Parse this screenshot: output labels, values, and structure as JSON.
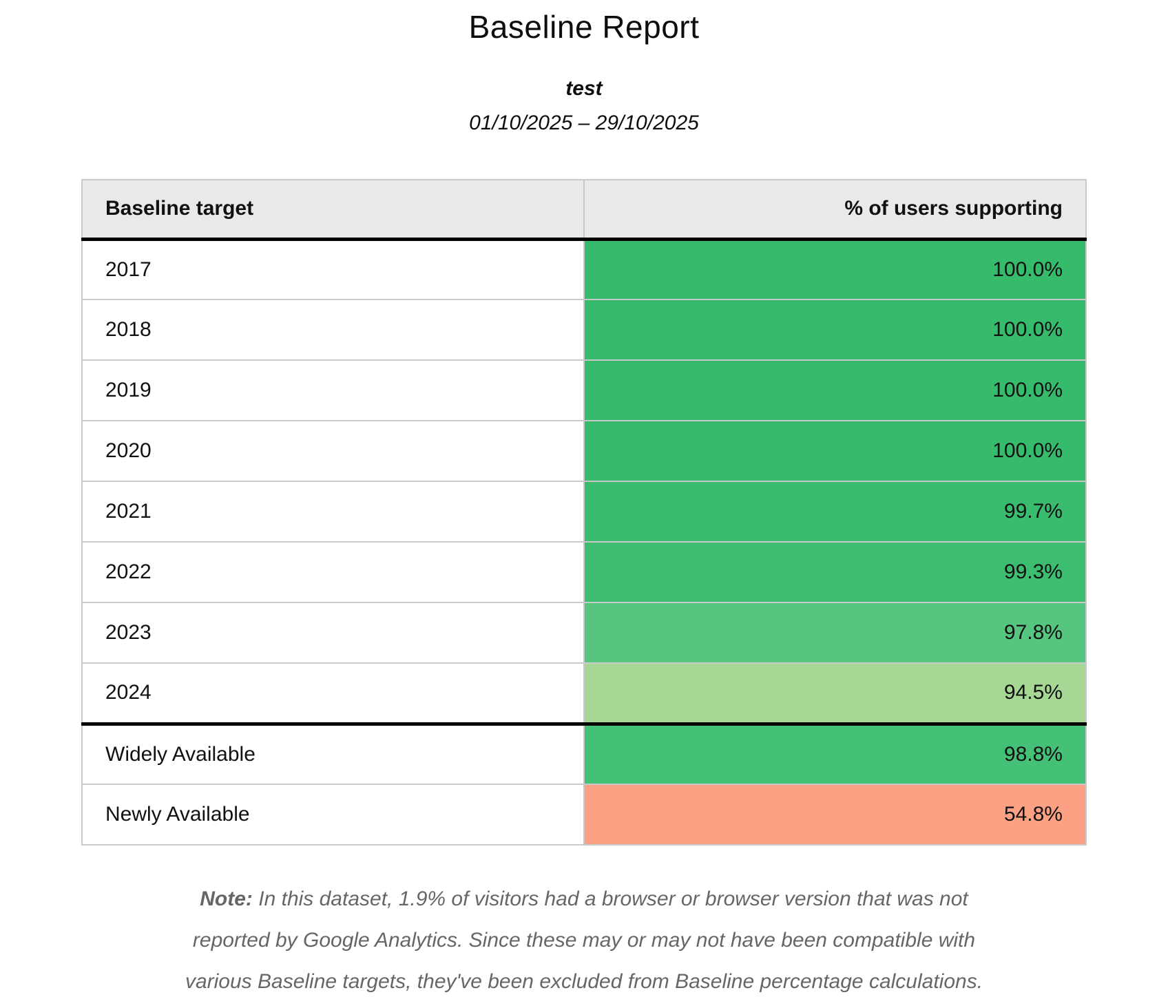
{
  "report": {
    "title": "Baseline Report",
    "subtitle": "test",
    "date_range": "01/10/2025 – 29/10/2025"
  },
  "table": {
    "columns": [
      {
        "label": "Baseline target"
      },
      {
        "label": "% of users supporting"
      }
    ],
    "rows": [
      {
        "target": "2017",
        "value": "100.0%",
        "color": "#36bb6c",
        "group": "year"
      },
      {
        "target": "2018",
        "value": "100.0%",
        "color": "#36bb6c",
        "group": "year"
      },
      {
        "target": "2019",
        "value": "100.0%",
        "color": "#36bb6c",
        "group": "year"
      },
      {
        "target": "2020",
        "value": "100.0%",
        "color": "#36bb6c",
        "group": "year"
      },
      {
        "target": "2021",
        "value": "99.7%",
        "color": "#39bc6e",
        "group": "year"
      },
      {
        "target": "2022",
        "value": "99.3%",
        "color": "#3dbd70",
        "group": "year"
      },
      {
        "target": "2023",
        "value": "97.8%",
        "color": "#55c57f",
        "group": "year"
      },
      {
        "target": "2024",
        "value": "94.5%",
        "color": "#a6d795",
        "group": "year"
      },
      {
        "target": "Widely Available",
        "value": "98.8%",
        "color": "#44c077",
        "group": "availability"
      },
      {
        "target": "Newly Available",
        "value": "54.8%",
        "color": "#fca184",
        "group": "availability"
      }
    ]
  },
  "note": {
    "label": "Note:",
    "lines": [
      "In this dataset, 1.9% of visitors had a browser or browser version that was not",
      "reported by Google Analytics. Since these may or may not have been compatible with",
      "various Baseline targets, they've been excluded from Baseline percentage calculations."
    ]
  },
  "colors": {
    "header_background": "#e9e9e9",
    "grid_border": "#c9c9c9",
    "separator": "#000000",
    "note_text": "#666666",
    "good": "#36bb6c",
    "warn": "#a6d795",
    "bad": "#fca184"
  }
}
